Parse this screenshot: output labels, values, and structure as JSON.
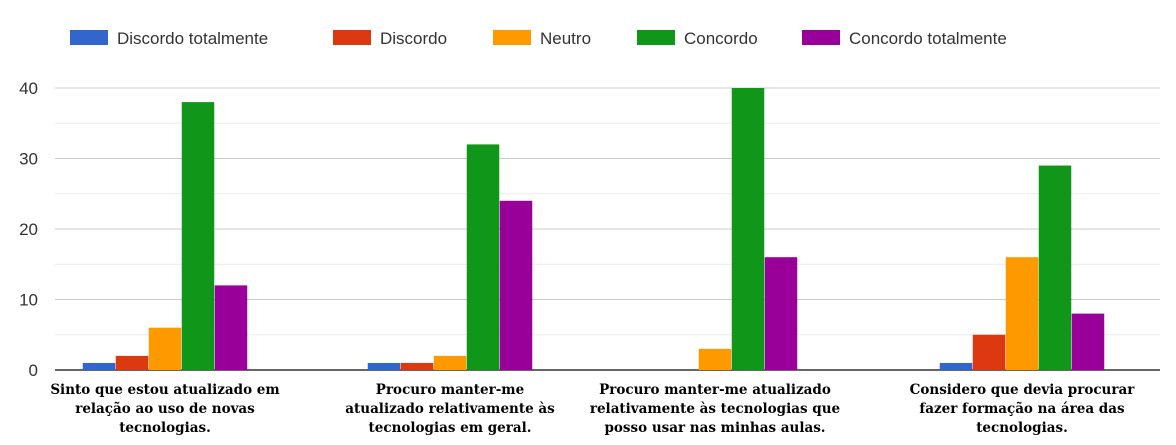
{
  "chart_data": {
    "type": "bar",
    "categories": [
      [
        "Sinto que estou atualizado em",
        "relação ao uso de novas",
        "tecnologias."
      ],
      [
        "Procuro manter-me",
        "atualizado relativamente às",
        "tecnologias em geral."
      ],
      [
        "Procuro manter-me atualizado",
        "relativamente às tecnologias que",
        "posso usar nas minhas aulas."
      ],
      [
        "Considero que devia procurar",
        "fazer formação na área das",
        "tecnologias."
      ]
    ],
    "series": [
      {
        "name": "Discordo totalmente",
        "color": "#3366cc",
        "values": [
          1,
          1,
          0,
          1
        ]
      },
      {
        "name": "Discordo",
        "color": "#dc3912",
        "values": [
          2,
          1,
          0,
          5
        ]
      },
      {
        "name": "Neutro",
        "color": "#ff9900",
        "values": [
          6,
          2,
          3,
          16
        ]
      },
      {
        "name": "Concordo",
        "color": "#109618",
        "values": [
          38,
          32,
          40,
          29
        ]
      },
      {
        "name": "Concordo totalmente",
        "color": "#990099",
        "values": [
          12,
          24,
          16,
          8
        ]
      }
    ],
    "yticks": [
      0,
      10,
      20,
      30,
      40
    ],
    "ylim": [
      0,
      40
    ],
    "legend_position": "top",
    "grid": true,
    "title": "",
    "xlabel": "",
    "ylabel": ""
  }
}
